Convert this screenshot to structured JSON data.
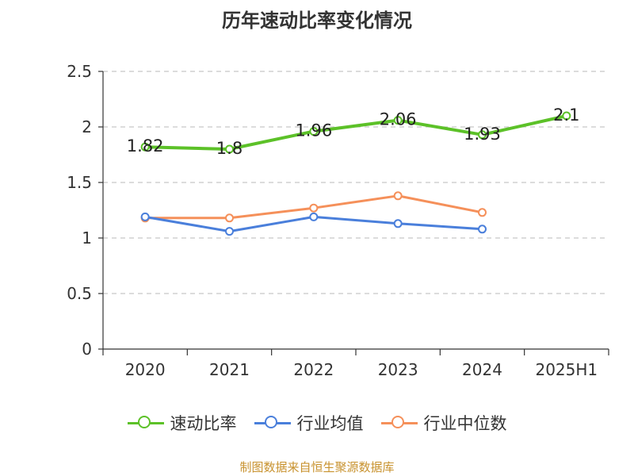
{
  "chart_data": {
    "type": "line",
    "title": "历年速动比率变化情况",
    "categories": [
      "2020",
      "2021",
      "2022",
      "2023",
      "2024",
      "2025H1"
    ],
    "series": [
      {
        "name": "速动比率",
        "color": "#5cc128",
        "values": [
          1.82,
          1.8,
          1.96,
          2.06,
          1.93,
          2.1
        ],
        "labels": [
          "1.82",
          "1.8",
          "1.96",
          "2.06",
          "1.93",
          "2.1"
        ]
      },
      {
        "name": "行业均值",
        "color": "#4a7fdb",
        "values": [
          1.19,
          1.06,
          1.19,
          1.13,
          1.08,
          null
        ]
      },
      {
        "name": "行业中位数",
        "color": "#f5905a",
        "values": [
          1.18,
          1.18,
          1.27,
          1.38,
          1.23,
          null
        ]
      }
    ],
    "ylim": [
      0,
      2.5
    ],
    "yticks": [
      "0",
      "0.5",
      "1",
      "1.5",
      "2",
      "2.5"
    ],
    "grid": true,
    "legend_position": "bottom"
  },
  "source": "制图数据来自恒生聚源数据库"
}
